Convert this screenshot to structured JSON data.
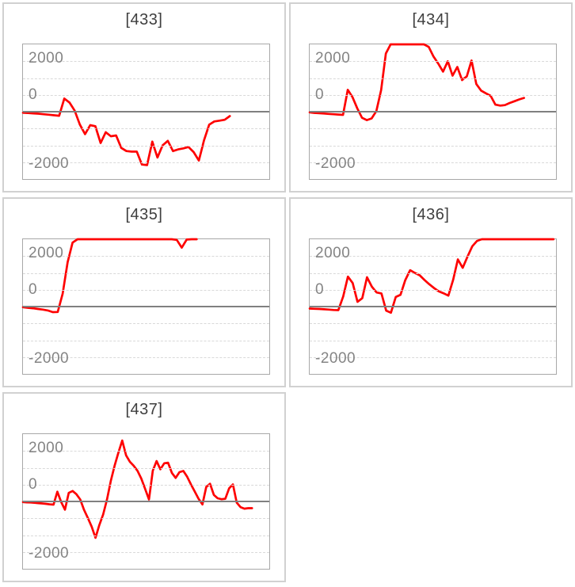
{
  "colors": {
    "series": "#fe0000",
    "zero_line": "#808080",
    "gridline": "#d9d9d9",
    "plot_border": "#a8a8a8",
    "panel_border": "#d1d1d1",
    "title_text": "#3f3f3f",
    "axis_label_text": "#848484",
    "background": "#ffffff"
  },
  "axis": {
    "tick_labels": [
      "2000",
      "0",
      "-2000"
    ],
    "ymin": -2000,
    "ymax": 2000,
    "gridline_pcts": [
      12.5,
      25,
      37.5,
      62.5,
      75,
      87.5
    ],
    "zero_line_pct": 50,
    "grid_style": "horizontal-dashed",
    "vertical_gridlines": false,
    "legend": "none"
  },
  "chart_data": [
    {
      "type": "line",
      "title": "[433]",
      "ylim": [
        -2000,
        2000
      ],
      "yticks": [
        2000,
        0,
        -2000
      ],
      "x_end_frac": 0.84,
      "values": [
        -30,
        -40,
        -50,
        -60,
        -75,
        -90,
        -105,
        -120,
        390,
        270,
        30,
        -380,
        -665,
        -400,
        -430,
        -930,
        -610,
        -730,
        -705,
        -1075,
        -1170,
        -1185,
        -1185,
        -1570,
        -1585,
        -890,
        -1360,
        -1000,
        -865,
        -1170,
        -1120,
        -1090,
        -1050,
        -1200,
        -1450,
        -850,
        -385,
        -290,
        -265,
        -240,
        -130
      ]
    },
    {
      "type": "line",
      "title": "[434]",
      "ylim": [
        -2000,
        2000
      ],
      "yticks": [
        2000,
        0,
        -2000
      ],
      "x_end_frac": 0.87,
      "values": [
        -20,
        -35,
        -45,
        -55,
        -65,
        -75,
        -85,
        -95,
        650,
        430,
        100,
        -180,
        -250,
        -200,
        20,
        640,
        1730,
        2000,
        2000,
        2000,
        2000,
        2000,
        2000,
        2000,
        2000,
        1925,
        1640,
        1430,
        1190,
        1500,
        1070,
        1330,
        940,
        1050,
        1520,
        820,
        625,
        545,
        470,
        210,
        180,
        195,
        260,
        310,
        365,
        410
      ]
    },
    {
      "type": "line",
      "title": "[435]",
      "ylim": [
        -2000,
        2000
      ],
      "yticks": [
        2000,
        0,
        -2000
      ],
      "x_end_frac": 0.705,
      "values": [
        -20,
        -35,
        -50,
        -70,
        -90,
        -115,
        -165,
        -160,
        380,
        1320,
        1900,
        2000,
        2000,
        2000,
        2000,
        2000,
        2000,
        2000,
        2000,
        2000,
        2000,
        2000,
        2000,
        2000,
        2000,
        2000,
        2000,
        2000,
        2000,
        2000,
        2000,
        1980,
        1750,
        1990,
        2000,
        2000
      ]
    },
    {
      "type": "line",
      "title": "[436]",
      "ylim": [
        -2000,
        2000
      ],
      "yticks": [
        2000,
        0,
        -2000
      ],
      "x_end_frac": 0.99,
      "values": [
        -60,
        -65,
        -70,
        -80,
        -90,
        -100,
        -105,
        300,
        890,
        700,
        140,
        250,
        870,
        590,
        420,
        390,
        -120,
        -180,
        285,
        350,
        785,
        1080,
        1000,
        930,
        790,
        665,
        550,
        455,
        395,
        325,
        790,
        1400,
        1150,
        1480,
        1790,
        1950,
        2000,
        2000,
        2000,
        2000,
        2000,
        2000,
        2000,
        2000,
        2000,
        2000,
        2000,
        2000,
        2000,
        2000,
        2000,
        2000
      ]
    },
    {
      "type": "line",
      "title": "[437]",
      "ylim": [
        -2000,
        2000
      ],
      "yticks": [
        2000,
        0,
        -2000
      ],
      "x_end_frac": 0.93,
      "values": [
        -20,
        -25,
        -30,
        -40,
        -50,
        -60,
        -70,
        -85,
        -95,
        290,
        -15,
        -245,
        255,
        310,
        215,
        60,
        -250,
        -490,
        -750,
        -1080,
        -700,
        -390,
        60,
        610,
        1060,
        1450,
        1810,
        1370,
        1180,
        1060,
        910,
        680,
        370,
        60,
        910,
        1200,
        955,
        1135,
        1150,
        850,
        700,
        870,
        905,
        735,
        505,
        295,
        80,
        -90,
        430,
        525,
        195,
        95,
        65,
        80,
        390,
        505,
        -35,
        -170,
        -215,
        -200,
        -200
      ]
    }
  ]
}
